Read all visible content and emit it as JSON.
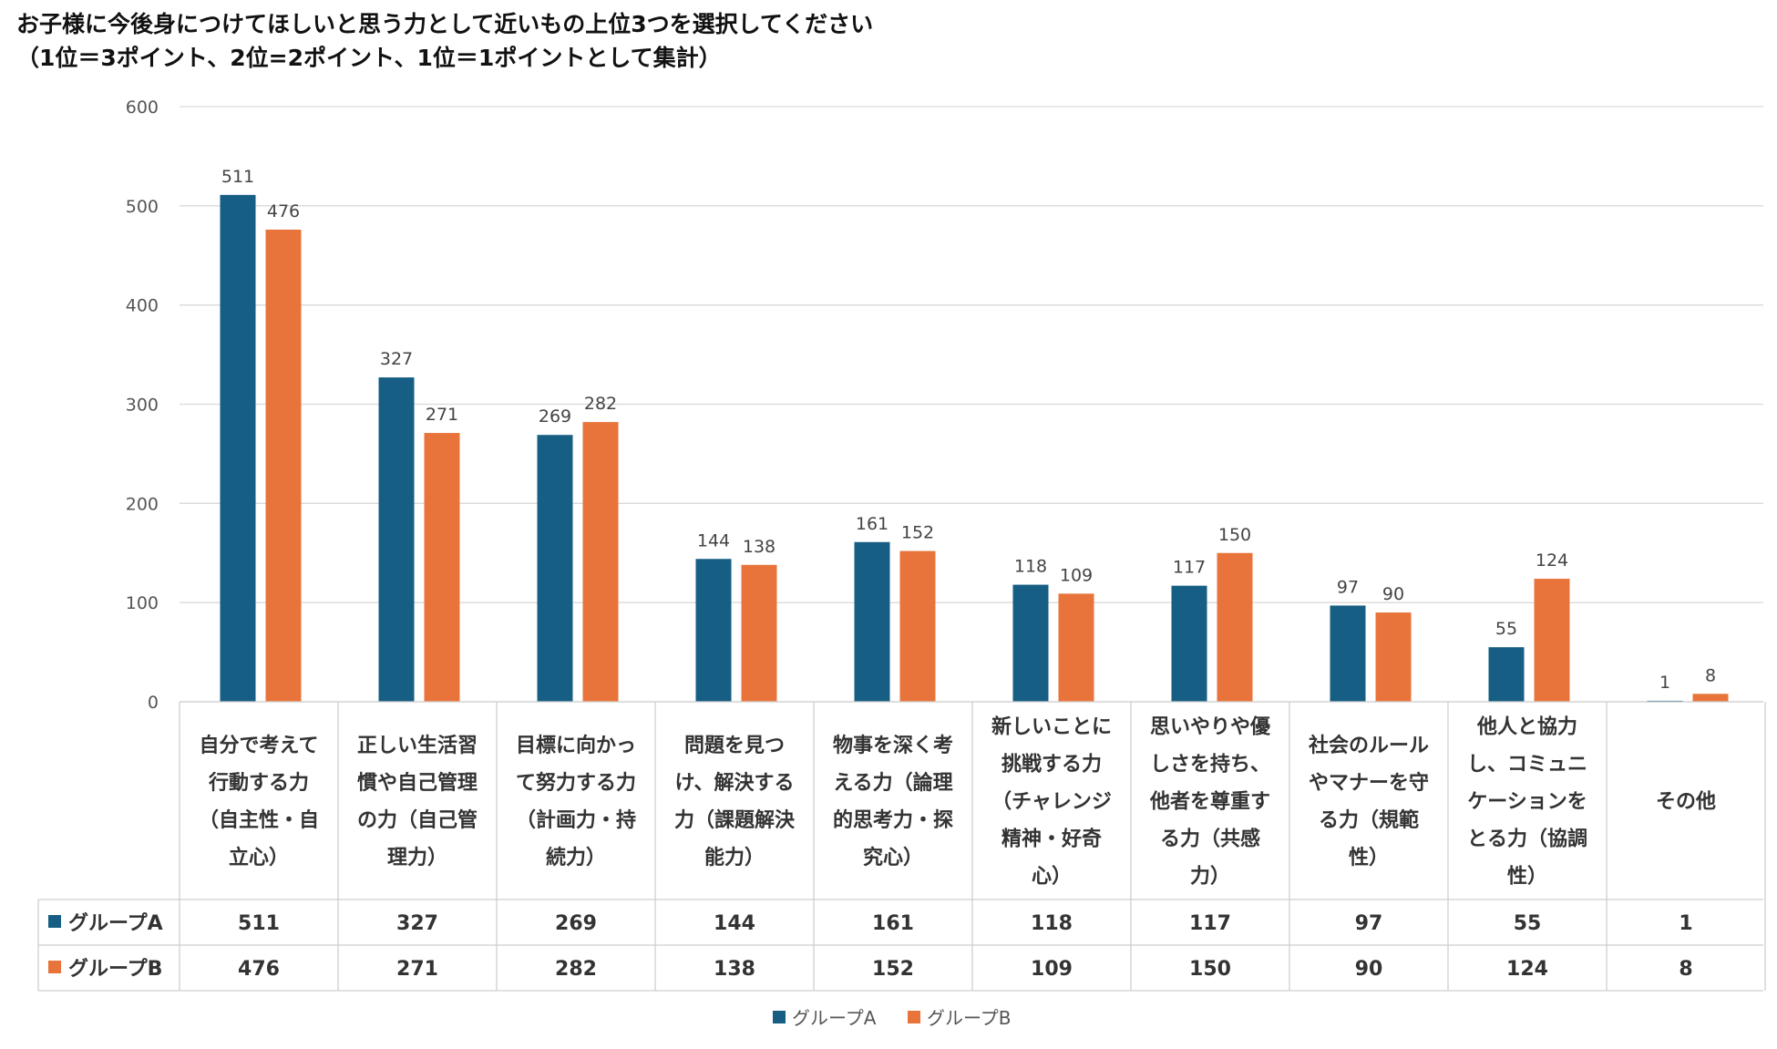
{
  "title_line1": "お子様に今後身につけてほしいと思う力として近いもの上位3つを選択してください",
  "title_line2": "（1位＝3ポイント、2位=2ポイント、1位＝1ポイントとして集計）",
  "colors": {
    "group_a": "#165E83",
    "group_b": "#E8743B"
  },
  "chart_data": {
    "type": "bar",
    "categories": [
      [
        "自分で考えて",
        "行動する力",
        "（自主性・自",
        "立心）"
      ],
      [
        "正しい生活習",
        "慣や自己管理",
        "の力（自己管",
        "理力）"
      ],
      [
        "目標に向かっ",
        "て努力する力",
        "（計画力・持",
        "続力）"
      ],
      [
        "問題を見つ",
        "け、解決する",
        "力（課題解決",
        "能力）"
      ],
      [
        "物事を深く考",
        "える力（論理",
        "的思考力・探",
        "究心）"
      ],
      [
        "新しいことに",
        "挑戦する力",
        "（チャレンジ",
        "精神・好奇",
        "心）"
      ],
      [
        "思いやりや優",
        "しさを持ち、",
        "他者を尊重す",
        "る力（共感",
        "力）"
      ],
      [
        "社会のルール",
        "やマナーを守",
        "る力（規範",
        "性）"
      ],
      [
        "他人と協力",
        "し、コミュニ",
        "ケーションを",
        "とる力（協調",
        "性）"
      ],
      [
        "その他"
      ]
    ],
    "series": [
      {
        "name": "グループA",
        "values": [
          511,
          327,
          269,
          144,
          161,
          118,
          117,
          97,
          55,
          1
        ]
      },
      {
        "name": "グループB",
        "values": [
          476,
          271,
          282,
          138,
          152,
          109,
          150,
          90,
          124,
          8
        ]
      }
    ],
    "ylim": [
      0,
      600
    ],
    "yticks": [
      0,
      100,
      200,
      300,
      400,
      500,
      600
    ],
    "grid": true,
    "legend": "bottom",
    "data_table": true
  }
}
